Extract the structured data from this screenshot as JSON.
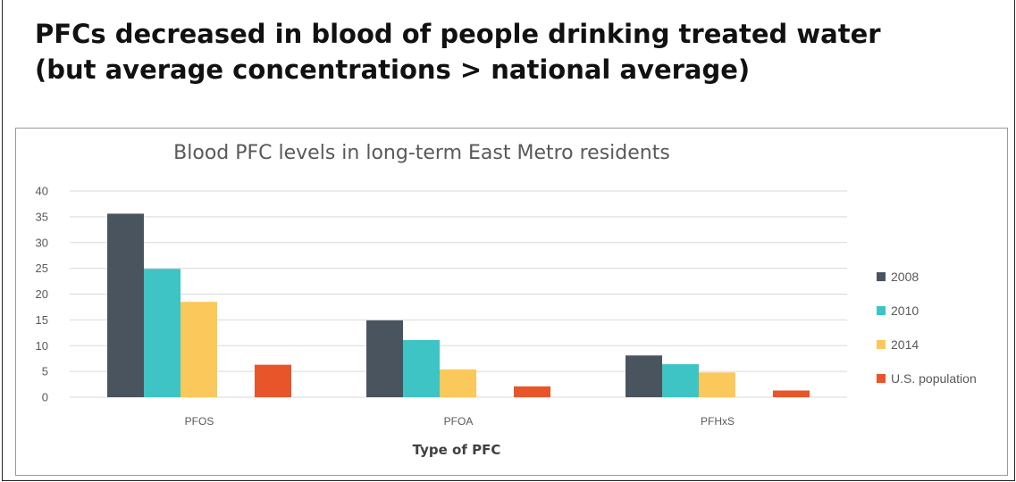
{
  "slide": {
    "title_line1": "PFCs decreased in blood of people drinking treated water",
    "title_line2": "(but average concentrations > national average)"
  },
  "colors": {
    "2008": "#4a545e",
    "2010": "#3ec4c4",
    "2014": "#fbc85c",
    "U.S. population": "#e8552a",
    "grid": "#d9d9d9",
    "text": "#595959"
  },
  "chart_data": {
    "type": "bar",
    "title": "Blood PFC levels in long-term East Metro residents",
    "xlabel": "Type of PFC",
    "ylabel": "",
    "categories": [
      "PFOS",
      "PFOA",
      "PFHxS"
    ],
    "series": [
      {
        "name": "2008",
        "values": [
          35.6,
          14.9,
          8.1
        ]
      },
      {
        "name": "2010",
        "values": [
          24.9,
          11.1,
          6.4
        ]
      },
      {
        "name": "2014",
        "values": [
          18.5,
          5.4,
          4.8
        ]
      },
      {
        "name": "U.S. population",
        "values": [
          6.3,
          2.1,
          1.3
        ]
      }
    ],
    "ylim": [
      0,
      40
    ],
    "yticks": [
      0,
      5,
      10,
      15,
      20,
      25,
      30,
      35,
      40
    ],
    "grid": true,
    "legend_position": "right"
  }
}
